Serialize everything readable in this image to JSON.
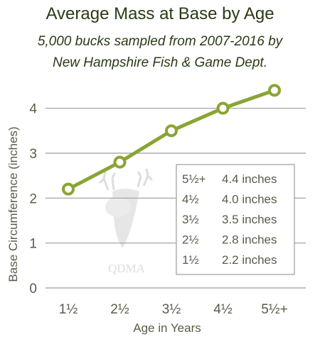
{
  "title": "Average Mass at Base by Age",
  "subtitle_line1": "5,000 bucks sampled from 2007-2016 by",
  "subtitle_line2": "New Hampshire Fish & Game Dept.",
  "watermark": "QDMA",
  "colors": {
    "line": "#8aa434",
    "title": "#2b3a16",
    "text": "#5a5a4a",
    "grid": "#9c9c9c"
  },
  "chart_data": {
    "type": "line",
    "title": "Average Mass at Base by Age",
    "xlabel": "Age in Years",
    "ylabel": "Base Circumference (inches)",
    "categories": [
      "1½",
      "2½",
      "3½",
      "4½",
      "5½+"
    ],
    "values": [
      2.2,
      2.8,
      3.5,
      4.0,
      4.4
    ],
    "ylim": [
      0,
      4.5
    ],
    "yticks": [
      "0",
      "1",
      "2",
      "3",
      "4"
    ],
    "grid": "horizontal",
    "legend_table": [
      {
        "age": "5½+",
        "value": "4.4 inches"
      },
      {
        "age": "4½",
        "value": "4.0 inches"
      },
      {
        "age": "3½",
        "value": "3.5 inches"
      },
      {
        "age": "2½",
        "value": "2.8 inches"
      },
      {
        "age": "1½",
        "value": "2.2 inches"
      }
    ]
  }
}
